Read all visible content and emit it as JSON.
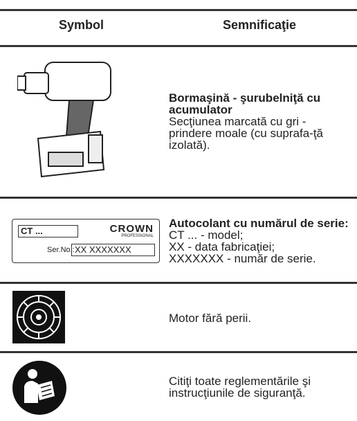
{
  "table": {
    "headers": [
      "Symbol",
      "Semnificaţie"
    ],
    "rows": [
      {
        "title": "Bormaşină - şurubelniţă cu acumulator",
        "lines": [
          "Secţiunea marcată cu gri - prindere moale (cu suprafa-ţă izolată)."
        ]
      },
      {
        "title": "Autocolant cu numărul de serie:",
        "lines": [
          "CT ... - model;",
          "XX - data fabricaţiei;",
          "XXXXXXX - număr de serie."
        ]
      },
      {
        "lines": [
          "Motor fără perii."
        ]
      },
      {
        "lines": [
          "Citiţi toate reglementările şi instrucţiunile de siguranţă."
        ]
      }
    ]
  },
  "label": {
    "model": "CT ...",
    "brand": "CROWN",
    "sub": "PROFESSIONAL",
    "serial_label": "Ser.No.:",
    "serial": "XX XXXXXXX"
  }
}
